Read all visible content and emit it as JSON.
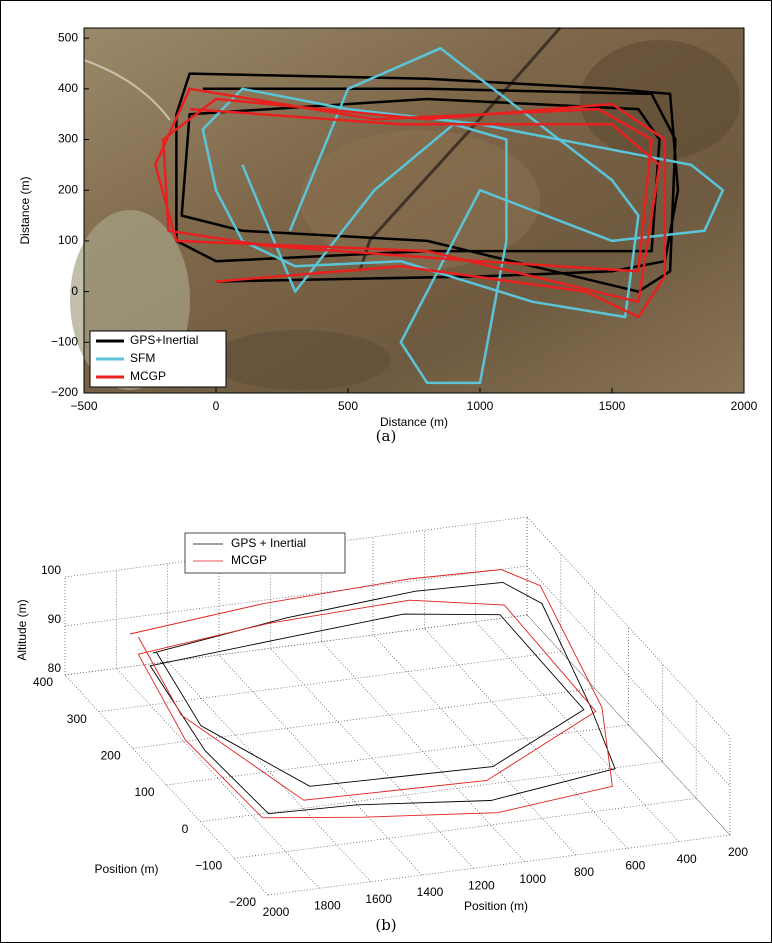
{
  "chart_data": [
    {
      "type": "line",
      "caption": "(a)",
      "xlabel": "Distance (m)",
      "ylabel": "Distance (m)",
      "xlim": [
        -500,
        2000
      ],
      "ylim": [
        -200,
        520
      ],
      "xticks": [
        {
          "value": -500,
          "label": "−500"
        },
        0,
        500,
        1000,
        1500,
        2000
      ],
      "yticks": [
        {
          "value": -200,
          "label": "−200"
        },
        {
          "value": -100,
          "label": "−100"
        },
        0,
        100,
        200,
        300,
        400,
        500
      ],
      "legend": "lower left",
      "series": [
        {
          "name": "GPS+Inertial",
          "color": "#000000",
          "x": [
            0,
            1000,
            1500,
            1700,
            1750,
            1720,
            1500,
            800,
            -100,
            -150,
            -150,
            0,
            800,
            1650,
            1680,
            1600,
            800,
            -100,
            -130,
            100,
            800,
            1600,
            1720,
            1740,
            1650,
            800,
            -50
          ],
          "values": [
            20,
            30,
            40,
            60,
            200,
            390,
            400,
            420,
            430,
            350,
            100,
            60,
            80,
            80,
            300,
            360,
            380,
            350,
            150,
            120,
            100,
            0,
            40,
            300,
            390,
            400,
            400
          ]
        },
        {
          "name": "SFM",
          "color": "#5bc4d8",
          "x": [
            280,
            500,
            850,
            1000,
            1300,
            1500,
            1600,
            1550,
            1200,
            700,
            300,
            100,
            0,
            -50,
            100,
            500,
            1000,
            1500,
            1800,
            1920,
            1850,
            1500,
            1000,
            700,
            800,
            1000,
            1100,
            1100,
            900,
            600,
            300,
            100
          ],
          "values": [
            120,
            400,
            480,
            420,
            300,
            220,
            150,
            -50,
            -20,
            60,
            50,
            100,
            200,
            320,
            400,
            360,
            330,
            280,
            250,
            200,
            120,
            100,
            200,
            -100,
            -180,
            -180,
            100,
            300,
            330,
            200,
            0,
            250
          ]
        },
        {
          "name": "MCGP",
          "color": "#e82020",
          "x": [
            0,
            700,
            1400,
            1600,
            1700,
            1700,
            1500,
            800,
            0,
            -200,
            -180,
            200,
            1000,
            1600,
            1650,
            1450,
            600,
            -100,
            -230,
            -150,
            800,
            1600,
            1680,
            1500,
            700,
            -100
          ],
          "values": [
            20,
            50,
            0,
            -50,
            30,
            300,
            370,
            340,
            380,
            300,
            120,
            90,
            60,
            40,
            300,
            360,
            340,
            400,
            250,
            100,
            80,
            -20,
            250,
            330,
            330,
            360
          ]
        }
      ]
    },
    {
      "type": "line3d",
      "caption": "(b)",
      "xlabel": "Position (m)",
      "ylabel": "Position (m)",
      "zlabel": "Altitude (m)",
      "xlim": [
        200,
        2000
      ],
      "ylim": [
        -200,
        400
      ],
      "zlim": [
        80,
        100
      ],
      "xticks": [
        200,
        400,
        600,
        800,
        1000,
        1200,
        1400,
        1600,
        1800,
        2000
      ],
      "yticks": [
        {
          "value": -200,
          "label": "−200"
        },
        {
          "value": -100,
          "label": "−100"
        },
        0,
        100,
        200,
        300,
        400
      ],
      "zticks": [
        80,
        90,
        100
      ],
      "grid": true,
      "legend": "upper left",
      "series": [
        {
          "name": "GPS + Inertial",
          "color": "#000000",
          "x": [
            1750,
            1200,
            700,
            400,
            300,
            350,
            450,
            1000,
            1500,
            1800,
            1850,
            1800,
            1300,
            800,
            450,
            400,
            900,
            1600,
            1800,
            1750
          ],
          "y": [
            330,
            350,
            350,
            320,
            280,
            100,
            -50,
            -100,
            -80,
            -50,
            100,
            300,
            300,
            310,
            290,
            80,
            -30,
            -20,
            150,
            320
          ],
          "z": [
            88,
            90,
            92,
            94,
            92,
            85,
            84,
            85,
            86,
            84,
            86,
            88,
            90,
            91,
            90,
            86,
            86,
            86,
            87,
            89
          ]
        },
        {
          "name": "MCGP",
          "color": "#e02020",
          "x": [
            1800,
            1250,
            700,
            380,
            280,
            330,
            500,
            1000,
            1500,
            1850,
            1900,
            1820,
            1300,
            750,
            420,
            380,
            950,
            1650,
            1850,
            1780
          ],
          "y": [
            360,
            380,
            370,
            340,
            300,
            80,
            -80,
            -120,
            -100,
            -70,
            120,
            320,
            330,
            330,
            300,
            60,
            -50,
            -40,
            170,
            350
          ],
          "z": [
            90,
            91,
            93,
            95,
            94,
            86,
            83,
            84,
            85,
            85,
            87,
            89,
            91,
            92,
            91,
            87,
            85,
            85,
            88,
            90
          ]
        }
      ]
    }
  ]
}
